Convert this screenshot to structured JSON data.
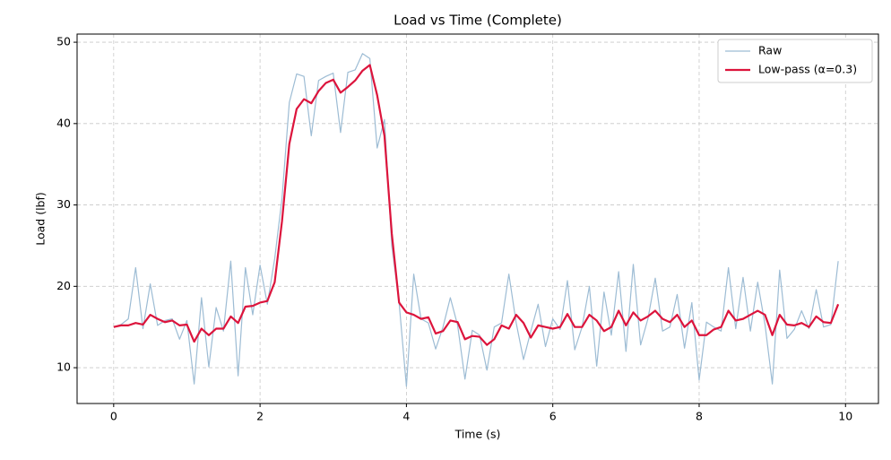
{
  "chart_data": {
    "type": "line",
    "title": "Load vs Time (Complete)",
    "xlabel": "Time (s)",
    "ylabel": "Load (lbf)",
    "x": [
      0,
      0.1,
      0.2,
      0.3,
      0.4,
      0.5,
      0.6,
      0.7,
      0.8,
      0.9,
      1,
      1.1,
      1.2,
      1.3,
      1.4,
      1.5,
      1.6,
      1.7,
      1.8,
      1.9,
      2,
      2.1,
      2.2,
      2.3,
      2.4,
      2.5,
      2.6,
      2.7,
      2.8,
      2.9,
      3,
      3.1,
      3.2,
      3.3,
      3.4,
      3.5,
      3.6,
      3.7,
      3.8,
      3.9,
      4,
      4.1,
      4.2,
      4.3,
      4.4,
      4.5,
      4.6,
      4.7,
      4.8,
      4.9,
      5,
      5.1,
      5.2,
      5.3,
      5.4,
      5.5,
      5.6,
      5.7,
      5.8,
      5.9,
      6,
      6.1,
      6.2,
      6.3,
      6.4,
      6.5,
      6.6,
      6.7,
      6.8,
      6.9,
      7,
      7.1,
      7.2,
      7.3,
      7.4,
      7.5,
      7.6,
      7.7,
      7.8,
      7.9,
      8,
      8.1,
      8.2,
      8.3,
      8.4,
      8.5,
      8.6,
      8.7,
      8.8,
      8.9,
      9,
      9.1,
      9.2,
      9.3,
      9.4,
      9.5,
      9.6,
      9.7,
      9.8,
      9.9
    ],
    "series": [
      {
        "name": "Raw",
        "color": "#9dbcd4",
        "width": 1.2,
        "values": [
          15.0,
          15.3,
          16.0,
          22.3,
          14.8,
          20.3,
          15.2,
          15.8,
          16.0,
          13.5,
          15.8,
          8.0,
          18.6,
          10.1,
          17.4,
          14.5,
          23.1,
          9.0,
          22.3,
          16.5,
          22.6,
          17.8,
          23.4,
          30.8,
          42.6,
          46.1,
          45.8,
          38.5,
          45.3,
          45.8,
          46.2,
          38.9,
          46.3,
          46.6,
          48.6,
          48.0,
          37.0,
          40.5,
          25.0,
          18.0,
          7.7,
          21.5,
          16.0,
          15.5,
          12.3,
          15.0,
          18.6,
          15.2,
          8.6,
          14.6,
          14.0,
          9.7,
          15.0,
          15.5,
          21.5,
          15.5,
          11.0,
          14.5,
          17.8,
          12.6,
          16.0,
          14.7,
          20.7,
          12.2,
          15.0,
          20.0,
          10.2,
          19.3,
          14.0,
          21.8,
          12.0,
          22.7,
          12.8,
          16.0,
          21.0,
          14.5,
          15.0,
          19.0,
          12.4,
          18.0,
          8.5,
          15.6,
          15.0,
          14.5,
          22.3,
          14.8,
          21.1,
          14.5,
          20.5,
          15.3,
          8.0,
          22.0,
          13.6,
          14.7,
          17.0,
          14.8,
          19.6,
          15.0,
          15.3,
          23.1
        ]
      },
      {
        "name": "Low-pass (α=0.3)",
        "color": "#dc143c",
        "width": 2.2,
        "values": [
          15.0,
          15.2,
          15.2,
          15.5,
          15.3,
          16.5,
          16.0,
          15.6,
          15.8,
          15.2,
          15.3,
          13.2,
          14.8,
          14.0,
          14.8,
          14.8,
          16.3,
          15.5,
          17.5,
          17.6,
          18.0,
          18.2,
          20.5,
          28.0,
          37.5,
          41.8,
          43.0,
          42.5,
          44.0,
          45.0,
          45.4,
          43.8,
          44.5,
          45.3,
          46.5,
          47.2,
          43.5,
          38.5,
          26.5,
          18.0,
          16.8,
          16.5,
          16.0,
          16.2,
          14.2,
          14.5,
          15.8,
          15.6,
          13.5,
          13.9,
          13.8,
          12.8,
          13.5,
          15.2,
          14.8,
          16.5,
          15.5,
          13.7,
          15.2,
          15.0,
          14.8,
          15.0,
          16.6,
          15.0,
          15.0,
          16.5,
          15.8,
          14.5,
          15.0,
          17.0,
          15.2,
          16.8,
          15.8,
          16.3,
          17.0,
          16.0,
          15.6,
          16.5,
          15.0,
          15.8,
          14.0,
          14.0,
          14.7,
          15.0,
          17.0,
          15.8,
          16.0,
          16.5,
          17.0,
          16.5,
          14.0,
          16.5,
          15.3,
          15.2,
          15.5,
          15.0,
          16.3,
          15.6,
          15.5,
          17.8
        ]
      }
    ],
    "xlim": [
      -0.5,
      10.45
    ],
    "ylim": [
      5.6,
      51
    ],
    "xticks": [
      0,
      2,
      4,
      6,
      8,
      10
    ],
    "yticks": [
      10,
      20,
      30,
      40,
      50
    ],
    "grid": true,
    "legend": "upper right"
  }
}
